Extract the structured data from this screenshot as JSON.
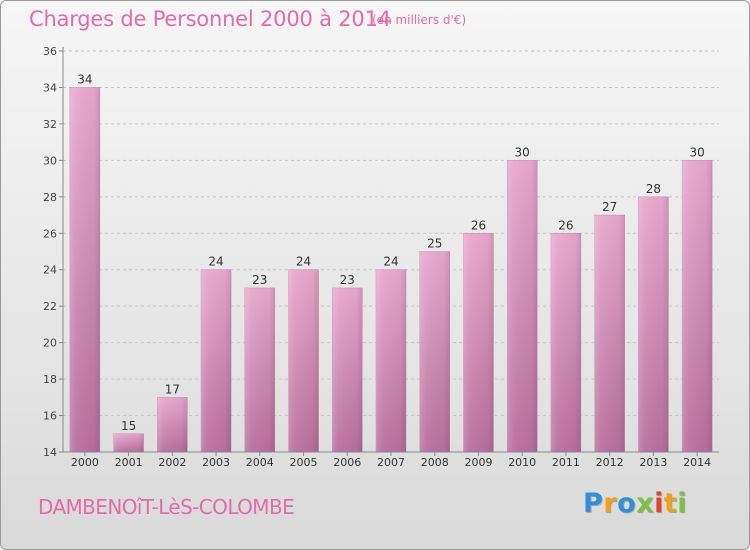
{
  "header": {
    "title": "Charges de Personnel 2000 à 2014",
    "subtitle": "(en milliers d'€)"
  },
  "footer": {
    "town": "DAMBENOîT-LèS-COLOMBE",
    "logo_letters": [
      "P",
      "r",
      "o",
      "x",
      "i",
      "t",
      "i"
    ],
    "logo_colors": [
      "#2f8fd8",
      "#f0a21b",
      "#2f8fd8",
      "#7cc242",
      "#e0442f",
      "#f0a21b",
      "#7cc242"
    ]
  },
  "colors": {
    "bar_top": "#e9a9cf",
    "bar_bottom": "#b8709e",
    "accent": "#e36baa"
  },
  "chart_data": {
    "type": "bar",
    "categories": [
      "2000",
      "2001",
      "2002",
      "2003",
      "2004",
      "2005",
      "2006",
      "2007",
      "2008",
      "2009",
      "2010",
      "2011",
      "2012",
      "2013",
      "2014"
    ],
    "values": [
      34,
      15,
      17,
      24,
      23,
      24,
      23,
      24,
      25,
      26,
      30,
      26,
      27,
      28,
      30
    ],
    "ylim": [
      14,
      36
    ],
    "yticks": [
      14,
      16,
      18,
      20,
      22,
      24,
      26,
      28,
      30,
      32,
      34,
      36
    ],
    "grid": true,
    "title": "Charges de Personnel 2000 à 2014",
    "xlabel": "",
    "ylabel": ""
  }
}
